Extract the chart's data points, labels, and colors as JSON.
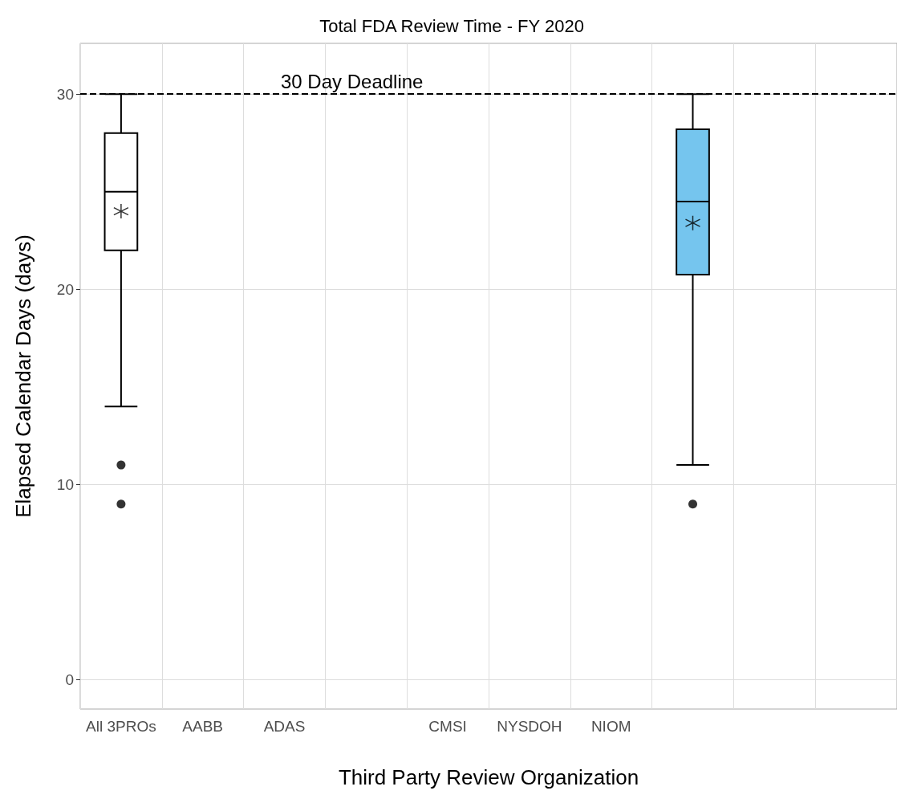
{
  "chart_data": {
    "type": "box",
    "title": "Total FDA Review Time - FY 2020",
    "xlabel": "Third Party Review Organization",
    "ylabel": "Elapsed Calendar Days (days)",
    "categories": [
      "All 3PROs",
      "AABB",
      "ADAS",
      null,
      "CMSI",
      "NYSDOH",
      "NIOM",
      null,
      null,
      null
    ],
    "boxes": [
      {
        "low": 14,
        "q1": 22,
        "median": 25,
        "q3": 28,
        "high": 30,
        "mean": 24,
        "outliers": [
          11,
          9
        ]
      },
      null,
      null,
      null,
      null,
      null,
      null,
      {
        "low": 11,
        "q1": 20.75,
        "median": 24.5,
        "q3": 28.2,
        "high": 30,
        "mean": 23.4,
        "outliers": [
          9
        ]
      },
      null,
      null
    ],
    "colors": [
      "#ffffff",
      null,
      null,
      null,
      null,
      null,
      null,
      "#75c5ee",
      null,
      null
    ],
    "ylim": [
      -1.5,
      32.6
    ],
    "yticks": [
      0,
      10,
      20,
      30
    ],
    "grid": true,
    "marker": "star",
    "ref_lines": [
      {
        "axis": "y",
        "value": 30,
        "label": "30 Day Deadline",
        "line_style": "dashed",
        "color": "#000000"
      }
    ]
  }
}
